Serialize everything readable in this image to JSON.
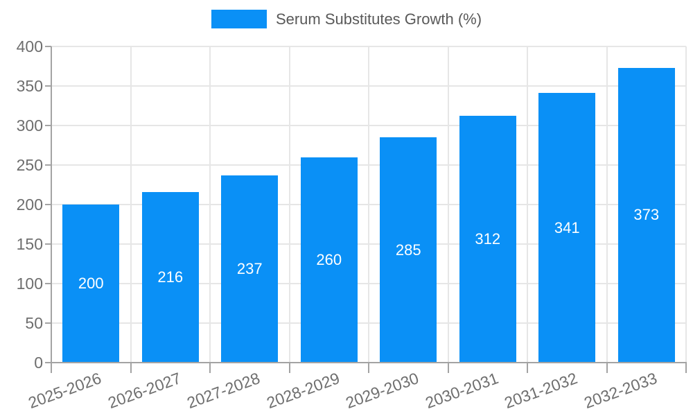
{
  "chart_data": {
    "type": "bar",
    "title": "Serum Substitutes Growth (%)",
    "legend": {
      "label": "Serum Substitutes Growth (%)",
      "position": "top-center",
      "swatch_color": "#0a90f6"
    },
    "categories": [
      "2025-2026",
      "2026-2027",
      "2027-2028",
      "2028-2029",
      "2029-2030",
      "2030-2031",
      "2031-2032",
      "2032-2033"
    ],
    "series": [
      {
        "name": "Serum Substitutes Growth (%)",
        "values": [
          200,
          216,
          237,
          260,
          285,
          312,
          341,
          373
        ]
      }
    ],
    "value_labels": [
      "200",
      "216",
      "237",
      "260",
      "285",
      "312",
      "341",
      "373"
    ],
    "xlabel": "",
    "ylabel": "",
    "ylim": [
      0,
      400
    ],
    "yticks": [
      0,
      50,
      100,
      150,
      200,
      250,
      300,
      350,
      400
    ],
    "grid": "horizontal and vertical band boundaries",
    "colors": {
      "bar": "#0a90f6",
      "bar_value_text": "#ffffff",
      "axis_tick_text": "#6e6e6e",
      "legend_text": "#595959",
      "gridline": "#e6e6e6",
      "axis_line": "#a3a3a3",
      "background": "#ffffff"
    }
  }
}
